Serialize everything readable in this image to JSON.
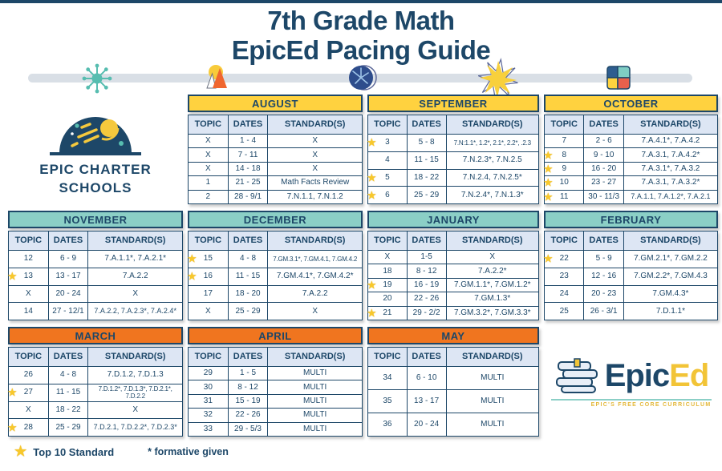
{
  "page": {
    "title_line1": "7th Grade Math",
    "title_line2": "EpicEd Pacing Guide"
  },
  "legend": {
    "star_label": "Top 10 Standard",
    "asterisk_label": "* formative given"
  },
  "logos": {
    "charter_line1": "EPIC CHARTER",
    "charter_line2": "SCHOOLS",
    "epiced_word1": "Epic",
    "epiced_word2": "Ed",
    "epiced_tagline": "EPIC'S FREE CORE CURRICULUM"
  },
  "columns": [
    "TOPIC",
    "DATES",
    "STANDARD(S)"
  ],
  "colors": {
    "navy": "#1d4768",
    "yellow": "#FFD23F",
    "teal": "#8BCFC6",
    "orange": "#F0751F",
    "column_header_bg": "#dde6f4",
    "timeline_bar": "#d9dfe6",
    "star": "#f8c82b"
  },
  "months": [
    {
      "name": "AUGUST",
      "theme": "yellow",
      "rows": [
        {
          "topic": "X",
          "star": false,
          "dates": "1 - 4",
          "standards": "X"
        },
        {
          "topic": "X",
          "star": false,
          "dates": "7 - 11",
          "standards": "X"
        },
        {
          "topic": "X",
          "star": false,
          "dates": "14 - 18",
          "standards": "X"
        },
        {
          "topic": "1",
          "star": false,
          "dates": "21 - 25",
          "standards": "Math Facts Review"
        },
        {
          "topic": "2",
          "star": false,
          "dates": "28 - 9/1",
          "standards": "7.N.1.1, 7.N.1.2"
        }
      ]
    },
    {
      "name": "SEPTEMBER",
      "theme": "yellow",
      "rows": [
        {
          "topic": "3",
          "star": true,
          "dates": "5 - 8",
          "standards": "7.N:1.1*, 1.2*, 2.1*, 2.2*, .2.3"
        },
        {
          "topic": "4",
          "star": false,
          "dates": "11 - 15",
          "standards": "7.N.2.3*, 7.N.2.5"
        },
        {
          "topic": "5",
          "star": true,
          "dates": "18 - 22",
          "standards": "7.N.2.4, 7.N.2.5*"
        },
        {
          "topic": "6",
          "star": true,
          "dates": "25 - 29",
          "standards": "7.N.2.4*, 7.N.1.3*"
        }
      ]
    },
    {
      "name": "OCTOBER",
      "theme": "yellow",
      "rows": [
        {
          "topic": "7",
          "star": false,
          "dates": "2 - 6",
          "standards": "7.A.4.1*, 7.A.4.2"
        },
        {
          "topic": "8",
          "star": true,
          "dates": "9 - 10",
          "standards": "7.A.3.1, 7.A.4.2*"
        },
        {
          "topic": "9",
          "star": true,
          "dates": "16 - 20",
          "standards": "7.A.3.1*, 7.A.3.2"
        },
        {
          "topic": "10",
          "star": true,
          "dates": "23 - 27",
          "standards": "7.A.3.1, 7.A.3.2*"
        },
        {
          "topic": "11",
          "star": true,
          "dates": "30 - 11/3",
          "standards": "7.A.1.1, 7.A.1.2*, 7.A.2.1"
        }
      ]
    },
    {
      "name": "NOVEMBER",
      "theme": "teal",
      "rows": [
        {
          "topic": "12",
          "star": false,
          "dates": "6 - 9",
          "standards": "7.A.1.1*, 7.A.2.1*"
        },
        {
          "topic": "13",
          "star": true,
          "dates": "13 - 17",
          "standards": "7.A.2.2"
        },
        {
          "topic": "X",
          "star": false,
          "dates": "20 - 24",
          "standards": "X"
        },
        {
          "topic": "14",
          "star": false,
          "dates": "27 - 12/1",
          "standards": "7.A.2.2, 7.A.2.3*, 7.A.2.4*"
        }
      ]
    },
    {
      "name": "DECEMBER",
      "theme": "teal",
      "rows": [
        {
          "topic": "15",
          "star": true,
          "dates": "4 - 8",
          "standards": "7.GM.3.1*, 7.GM.4.1, 7.GM.4.2"
        },
        {
          "topic": "16",
          "star": true,
          "dates": "11 - 15",
          "standards": "7.GM.4.1*, 7.GM.4.2*"
        },
        {
          "topic": "17",
          "star": false,
          "dates": "18 - 20",
          "standards": "7.A.2.2"
        },
        {
          "topic": "X",
          "star": false,
          "dates": "25 - 29",
          "standards": "X"
        }
      ]
    },
    {
      "name": "JANUARY",
      "theme": "teal",
      "rows": [
        {
          "topic": "X",
          "star": false,
          "dates": "1-5",
          "standards": "X"
        },
        {
          "topic": "18",
          "star": false,
          "dates": "8 - 12",
          "standards": "7.A.2.2*"
        },
        {
          "topic": "19",
          "star": true,
          "dates": "16 - 19",
          "standards": "7.GM.1.1*, 7.GM.1.2*"
        },
        {
          "topic": "20",
          "star": false,
          "dates": "22 - 26",
          "standards": "7.GM.1.3*"
        },
        {
          "topic": "21",
          "star": true,
          "dates": "29 - 2/2",
          "standards": "7.GM.3.2*, 7.GM.3.3*"
        }
      ]
    },
    {
      "name": "FEBRUARY",
      "theme": "teal",
      "rows": [
        {
          "topic": "22",
          "star": true,
          "dates": "5 - 9",
          "standards": "7.GM.2.1*, 7.GM.2.2"
        },
        {
          "topic": "23",
          "star": false,
          "dates": "12 - 16",
          "standards": "7.GM.2.2*, 7.GM.4.3"
        },
        {
          "topic": "24",
          "star": false,
          "dates": "20 - 23",
          "standards": "7.GM.4.3*"
        },
        {
          "topic": "25",
          "star": false,
          "dates": "26 - 3/1",
          "standards": "7.D.1.1*"
        }
      ]
    },
    {
      "name": "MARCH",
      "theme": "orange",
      "rows": [
        {
          "topic": "26",
          "star": false,
          "dates": "4 - 8",
          "standards": "7.D.1.2, 7.D.1.3"
        },
        {
          "topic": "27",
          "star": true,
          "dates": "11 - 15",
          "standards": "7.D.1.2*, 7.D.1.3*, 7.D.2.1*, 7.D.2.2"
        },
        {
          "topic": "X",
          "star": false,
          "dates": "18 - 22",
          "standards": "X"
        },
        {
          "topic": "28",
          "star": true,
          "dates": "25 - 29",
          "standards": "7.D.2.1, 7.D.2.2*, 7.D.2.3*"
        }
      ]
    },
    {
      "name": "APRIL",
      "theme": "orange",
      "rows": [
        {
          "topic": "29",
          "star": false,
          "dates": "1 - 5",
          "standards": "MULTI"
        },
        {
          "topic": "30",
          "star": false,
          "dates": "8 - 12",
          "standards": "MULTI"
        },
        {
          "topic": "31",
          "star": false,
          "dates": "15 - 19",
          "standards": "MULTI"
        },
        {
          "topic": "32",
          "star": false,
          "dates": "22 - 26",
          "standards": "MULTI"
        },
        {
          "topic": "33",
          "star": false,
          "dates": "29 - 5/3",
          "standards": "MULTI"
        }
      ]
    },
    {
      "name": "MAY",
      "theme": "orange",
      "rows": [
        {
          "topic": "34",
          "star": false,
          "dates": "6 - 10",
          "standards": "MULTI"
        },
        {
          "topic": "35",
          "star": false,
          "dates": "13 - 17",
          "standards": "MULTI"
        },
        {
          "topic": "36",
          "star": false,
          "dates": "20 - 24",
          "standards": "MULTI"
        }
      ]
    }
  ]
}
